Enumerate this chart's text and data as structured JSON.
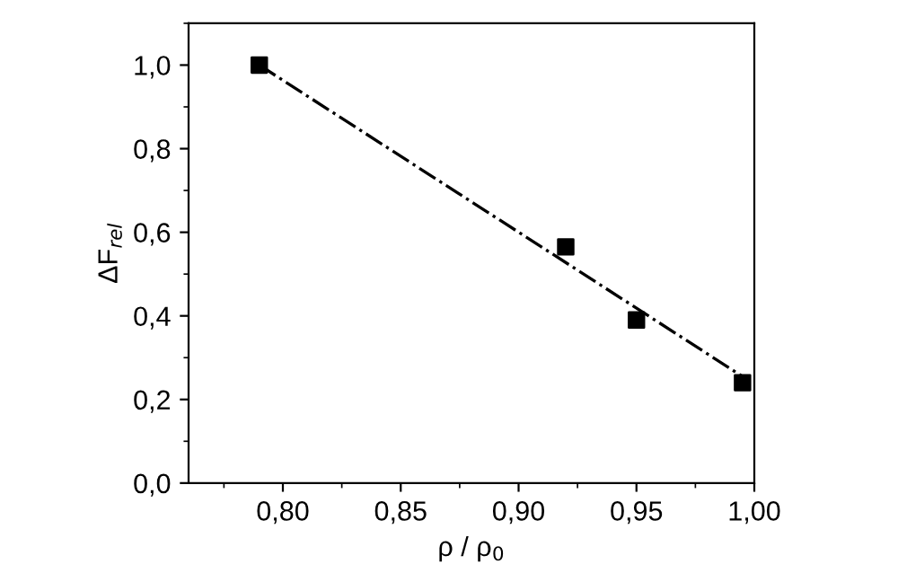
{
  "chart_data": {
    "type": "scatter",
    "xlabel": "ρ / ρ$_{0}$",
    "ylabel": "ΔF$_{rel}$",
    "series": [
      {
        "color": "#000000",
        "marker": "square",
        "x": [
          0.79,
          0.92,
          0.95,
          0.995
        ],
        "values": [
          1.0,
          0.565,
          0.39,
          0.24
        ]
      },
      {
        "type": "line",
        "color": "#000000",
        "line_style": "dashdot",
        "marker": "none",
        "x": [
          0.79,
          0.995
        ],
        "values": [
          1.0,
          0.255
        ]
      }
    ],
    "xlim": [
      0.76,
      1.0
    ],
    "ylim": [
      0.0,
      1.1
    ],
    "xticks": [
      {
        "value": 0.8,
        "label": "0,80"
      },
      {
        "value": 0.85,
        "label": "0,85"
      },
      {
        "value": 0.9,
        "label": "0,90"
      },
      {
        "value": 0.95,
        "label": "0,95"
      },
      {
        "value": 1.0,
        "label": "1,00"
      }
    ],
    "yticks": [
      {
        "value": 0.0,
        "label": "0,0"
      },
      {
        "value": 0.2,
        "label": "0,2"
      },
      {
        "value": 0.4,
        "label": "0,4"
      },
      {
        "value": 0.6,
        "label": "0,6"
      },
      {
        "value": 0.8,
        "label": "0,8"
      },
      {
        "value": 1.0,
        "label": "1,0"
      }
    ],
    "grid": false
  }
}
